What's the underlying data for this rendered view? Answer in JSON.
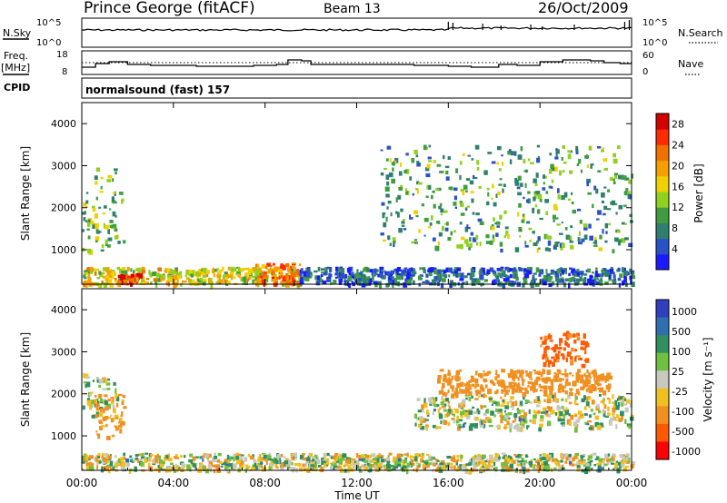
{
  "header": {
    "station": "Prince George (fitACF)",
    "beam": "Beam 13",
    "date": "26/Oct/2009"
  },
  "status_panels": {
    "nsky_label": "N.Sky",
    "nsky_ticks": [
      "10^5",
      "10^0"
    ],
    "nsearch_label": "N.Search",
    "nsearch_ticks": [
      "10^5",
      "10^0"
    ],
    "freq_label": "Freq.",
    "freq_unit": "[MHz]",
    "freq_ticks": [
      "18",
      "8"
    ],
    "nave_label": "Nave",
    "nave_ticks": [
      "60",
      "0"
    ],
    "cpid_label": "CPID",
    "cpid_value": "normalsound (fast) 157"
  },
  "colors": {
    "power_scale": [
      "#1a1aff",
      "#2a52c8",
      "#2f7f6e",
      "#3f9c3f",
      "#8fd020",
      "#f0d000",
      "#f5a000",
      "#f07000",
      "#ff2a00",
      "#d40000"
    ],
    "velocity_scale": [
      "#2f3fc0",
      "#2f6fb0",
      "#2f8f60",
      "#70c040",
      "#c8c8c0",
      "#f0c020",
      "#f09020",
      "#ff5a00",
      "#ff0000"
    ]
  },
  "chart_data": [
    {
      "type": "heatmap",
      "name": "power",
      "ylabel": "Slant Range [km]",
      "yticks": [
        "4000",
        "3000",
        "2000",
        "1000"
      ],
      "ylim": [
        180,
        4500
      ],
      "xlim_hours": [
        0,
        24
      ],
      "colorbar_label": "Power [dB]",
      "colorbar_ticks": [
        "28",
        "24",
        "20",
        "16",
        "12",
        "8",
        "4"
      ],
      "colorbar_range": [
        0,
        30
      ],
      "approx_echo_regions": [
        {
          "start_hr": 0.0,
          "end_hr": 1.8,
          "range_km": [
            1000,
            3000
          ],
          "level_db": 12
        },
        {
          "start_hr": 0.0,
          "end_hr": 9.5,
          "range_km": [
            200,
            600
          ],
          "level_db": 16
        },
        {
          "start_hr": 1.5,
          "end_hr": 2.5,
          "range_km": [
            200,
            450
          ],
          "level_db": 26
        },
        {
          "start_hr": 7.5,
          "end_hr": 9.5,
          "range_km": [
            200,
            700
          ],
          "level_db": 22
        },
        {
          "start_hr": 13.0,
          "end_hr": 24.0,
          "range_km": [
            1000,
            3500
          ],
          "level_db": 10
        },
        {
          "start_hr": 9.5,
          "end_hr": 24.0,
          "range_km": [
            200,
            600
          ],
          "level_db": 6
        }
      ]
    },
    {
      "type": "heatmap",
      "name": "velocity",
      "ylabel": "Slant Range [km]",
      "yticks": [
        "4000",
        "3000",
        "2000",
        "1000"
      ],
      "ylim": [
        180,
        4500
      ],
      "xlim_hours": [
        0,
        24
      ],
      "xticks": [
        "00:00",
        "04:00",
        "08:00",
        "12:00",
        "16:00",
        "20:00",
        "00:00"
      ],
      "xlabel": "Time UT",
      "colorbar_label": "Velocity [m s⁻¹]",
      "colorbar_ticks": [
        "1000",
        "500",
        "100",
        "25",
        "-25",
        "-100",
        "-500",
        "-1000"
      ],
      "approx_echo_regions": [
        {
          "start_hr": 0.0,
          "end_hr": 1.5,
          "range_km": [
            1500,
            2500
          ],
          "velocity": 0
        },
        {
          "start_hr": 0.5,
          "end_hr": 1.8,
          "range_km": [
            1000,
            2000
          ],
          "velocity": -200
        },
        {
          "start_hr": 0.0,
          "end_hr": 24.0,
          "range_km": [
            200,
            600
          ],
          "velocity": 0
        },
        {
          "start_hr": 14.5,
          "end_hr": 24.0,
          "range_km": [
            1200,
            2000
          ],
          "velocity": 0
        },
        {
          "start_hr": 15.5,
          "end_hr": 23.0,
          "range_km": [
            2000,
            2600
          ],
          "velocity": -300
        },
        {
          "start_hr": 20.0,
          "end_hr": 22.0,
          "range_km": [
            2700,
            3500
          ],
          "velocity": -600
        }
      ]
    }
  ]
}
